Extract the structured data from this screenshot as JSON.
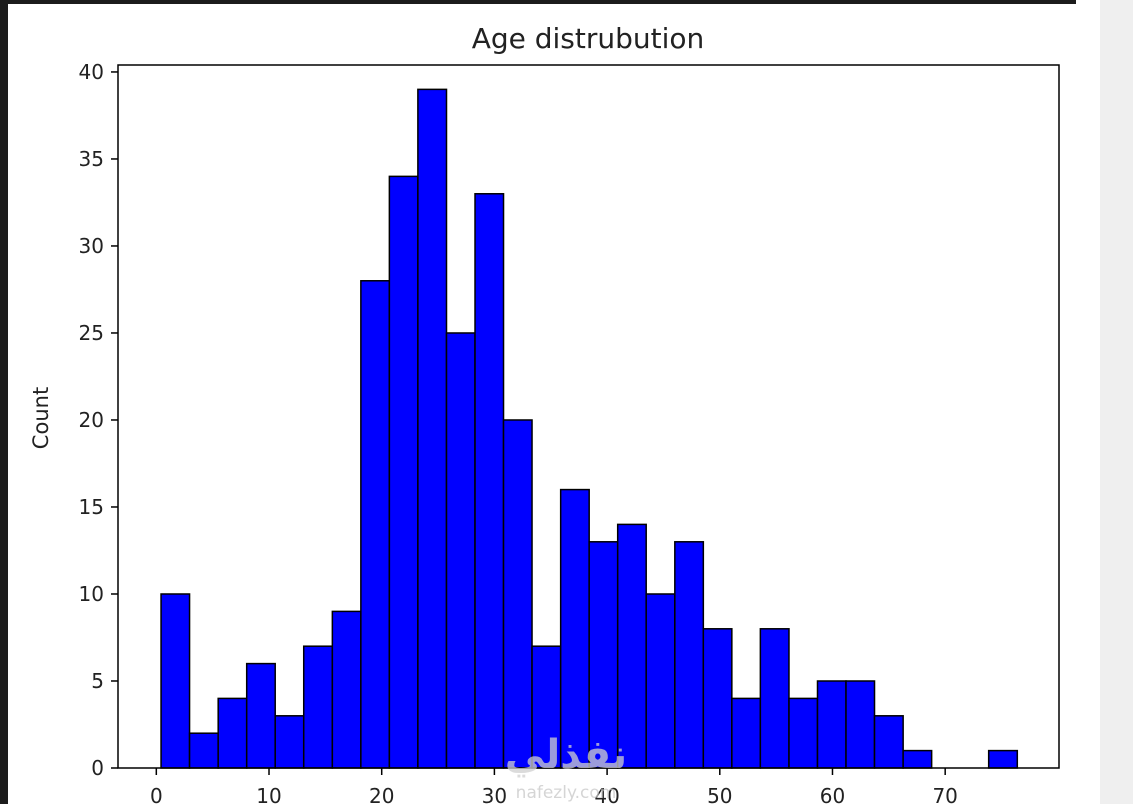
{
  "chart_data": {
    "type": "bar",
    "title": "Age distrubution",
    "xlabel": "",
    "ylabel": "Count",
    "bin_edges": [
      0.42,
      2.95,
      5.49,
      8.02,
      10.55,
      13.08,
      15.62,
      18.15,
      20.68,
      23.21,
      25.75,
      28.28,
      30.81,
      33.34,
      35.88,
      38.41,
      40.94,
      43.47,
      46.01,
      48.54,
      51.07,
      53.6,
      56.14,
      58.67,
      61.2,
      63.73,
      66.27,
      68.8,
      71.33,
      73.86,
      76.4
    ],
    "values": [
      10,
      2,
      4,
      6,
      3,
      7,
      9,
      28,
      34,
      39,
      25,
      33,
      20,
      7,
      16,
      13,
      14,
      10,
      13,
      8,
      4,
      8,
      4,
      5,
      5,
      3,
      1,
      0,
      0,
      1
    ],
    "xlim": [
      -3.4,
      80.1
    ],
    "ylim": [
      0,
      40.4
    ],
    "xticks": [
      0,
      10,
      20,
      30,
      40,
      50,
      60,
      70
    ],
    "yticks": [
      0,
      5,
      10,
      15,
      20,
      25,
      30,
      35,
      40
    ],
    "bar_color": "#0000ff",
    "edge_color": "#000000",
    "grid": false,
    "legend": "none"
  },
  "watermark": {
    "arabic": "نفذلي",
    "latin": "nafezly.com"
  }
}
